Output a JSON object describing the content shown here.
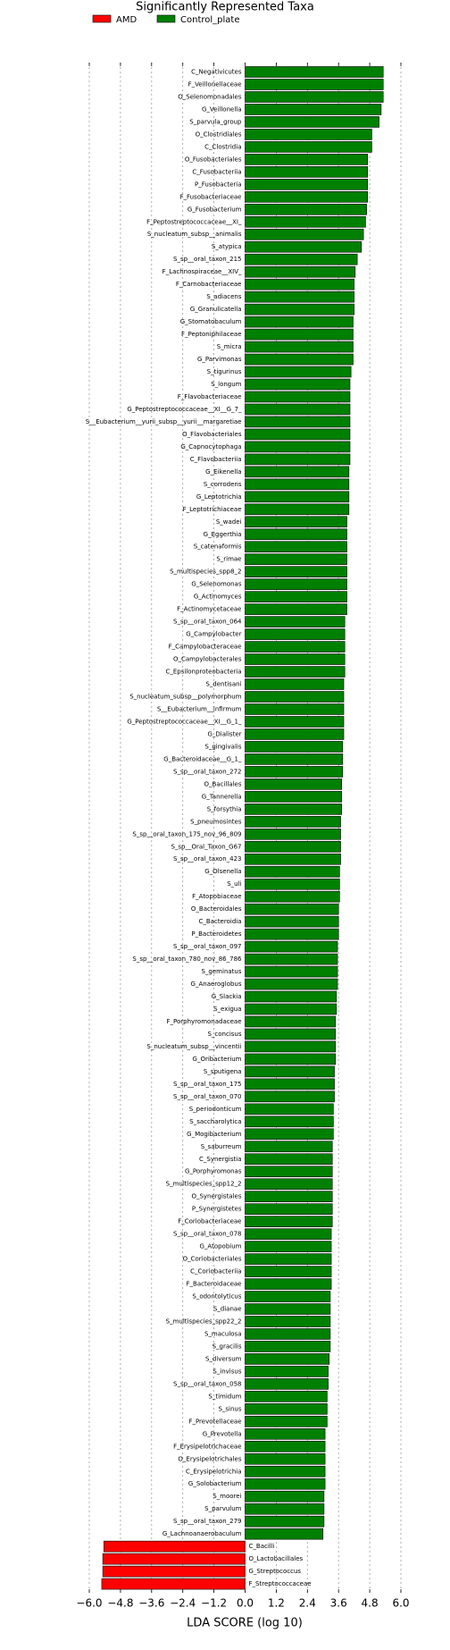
{
  "chart_data": {
    "type": "barh",
    "title": "Significantly Represented Taxa",
    "xlabel": "LDA SCORE (log 10)",
    "categories": [
      "C_Negativicutes",
      "F_Veillonellaceae",
      "O_Selenomonadales",
      "G_Veillonella",
      "S_parvula_group",
      "O_Clostridiales",
      "C_Clostridia",
      "O_Fusobacteriales",
      "C_Fusobacteriia",
      "P_Fusobacteria",
      "F_Fusobacteriaceae",
      "G_Fusobacterium",
      "F_Peptostreptococcaceae__XI_",
      "S_nucleatum_subsp__animalis",
      "S_atypica",
      "S_sp__oral_taxon_215",
      "F_Lachnospiraceae__XIV_",
      "F_Carnobacteriaceae",
      "S_adiacens",
      "G_Granulicatella",
      "G_Stomatobaculum",
      "F_Peptoniphilaceae",
      "S_micra",
      "G_Parvimonas",
      "S_tigurinus",
      "S_longum",
      "F_Flavobacteriaceae",
      "G_Peptostreptococcaceae__XI__G_7_",
      "S__Eubacterium__yurii_subsp__yurii__margaretiae",
      "O_Flavobacteriales",
      "G_Capnocytophaga",
      "C_Flavobacteriia",
      "G_Eikenella",
      "S_corrodens",
      "G_Leptotrichia",
      "F_Leptotrichiaceae",
      "S_wadei",
      "G_Eggerthia",
      "S_catenaformis",
      "S_rimae",
      "S_multispecies_spp8_2",
      "G_Selenomonas",
      "G_Actinomyces",
      "F_Actinomycetaceae",
      "S_sp__oral_taxon_064",
      "G_Campylobacter",
      "F_Campylobacteraceae",
      "O_Campylobacterales",
      "C_Epsilonproteobacteria",
      "S_dentisani",
      "S_nucleatum_subsp__polymorphum",
      "S__Eubacterium__infirmum",
      "G_Peptostreptococcaceae__XI__G_1_",
      "G_Dialister",
      "S_gingivalis",
      "G_Bacteroidaceae__G_1_",
      "S_sp__oral_taxon_272",
      "O_Bacillales",
      "G_Tannerella",
      "S_forsythia",
      "S_pneumosintes",
      "S_sp__oral_taxon_175_nov_96_809",
      "S_sp__Oral_Taxon_G67",
      "S_sp__oral_taxon_423",
      "G_Olsenella",
      "S_uli",
      "F_Atopobiaceae",
      "O_Bacteroidales",
      "C_Bacteroidia",
      "P_Bacteroidetes",
      "S_sp__oral_taxon_097",
      "S_sp__oral_taxon_780_nov_86_786",
      "S_geminatus",
      "G_Anaeroglobus",
      "G_Slackia",
      "S_exigua",
      "F_Porphyromonadaceae",
      "S_concisus",
      "S_nucleatum_subsp__vincentii",
      "G_Oribacterium",
      "S_sputigena",
      "S_sp__oral_taxon_175",
      "S_sp__oral_taxon_070",
      "S_periodonticum",
      "S_saccharolytica",
      "G_Mogibacterium",
      "S_saburreum",
      "C_Synergistia",
      "G_Porphyromonas",
      "S_multispecies_spp12_2",
      "O_Synergistales",
      "P_Synergistetes",
      "F_Coriobacteriaceae",
      "S_sp__oral_taxon_078",
      "G_Atopobium",
      "O_Coriobacteriales",
      "C_Coriobacteriia",
      "F_Bacteroidaceae",
      "S_odontolyticus",
      "S_dianae",
      "S_multispecies_spp22_2",
      "S_maculosa",
      "S_gracilis",
      "S_diversum",
      "S_invisus",
      "S_sp__oral_taxon_058",
      "S_timidum",
      "S_sinus",
      "F_Prevotellaceae",
      "G_Prevotella",
      "F_Erysipelotrichaceae",
      "O_Erysipelotrichales",
      "C_Erysipelotrichia",
      "G_Solobacterium",
      "S_moorei",
      "S_parvulum",
      "S_sp__oral_taxon_279",
      "G_Lachnoanaerobaculum",
      "C_Bacilli",
      "O_Lactobacillales",
      "G_Streptococcus",
      "F_Streptococcaceae"
    ],
    "series": [
      {
        "name": "AMD",
        "color": "#ff0000",
        "values": [
          null,
          null,
          null,
          null,
          null,
          null,
          null,
          null,
          null,
          null,
          null,
          null,
          null,
          null,
          null,
          null,
          null,
          null,
          null,
          null,
          null,
          null,
          null,
          null,
          null,
          null,
          null,
          null,
          null,
          null,
          null,
          null,
          null,
          null,
          null,
          null,
          null,
          null,
          null,
          null,
          null,
          null,
          null,
          null,
          null,
          null,
          null,
          null,
          null,
          null,
          null,
          null,
          null,
          null,
          null,
          null,
          null,
          null,
          null,
          null,
          null,
          null,
          null,
          null,
          null,
          null,
          null,
          null,
          null,
          null,
          null,
          null,
          null,
          null,
          null,
          null,
          null,
          null,
          null,
          null,
          null,
          null,
          null,
          null,
          null,
          null,
          null,
          null,
          null,
          null,
          null,
          null,
          null,
          null,
          null,
          null,
          null,
          null,
          null,
          null,
          null,
          null,
          null,
          null,
          null,
          null,
          null,
          null,
          null,
          null,
          null,
          null,
          null,
          null,
          null,
          null,
          null,
          null,
          -5.44,
          -5.48,
          -5.48,
          -5.52
        ]
      },
      {
        "name": "Control_plate",
        "color": "#008000",
        "values": [
          5.32,
          5.32,
          5.32,
          5.24,
          5.16,
          4.88,
          4.88,
          4.72,
          4.72,
          4.72,
          4.72,
          4.68,
          4.64,
          4.56,
          4.48,
          4.32,
          4.24,
          4.2,
          4.2,
          4.2,
          4.16,
          4.16,
          4.16,
          4.16,
          4.08,
          4.04,
          4.04,
          4.04,
          4.04,
          4.04,
          4.04,
          4.04,
          4.0,
          4.0,
          4.0,
          4.0,
          3.92,
          3.92,
          3.92,
          3.92,
          3.92,
          3.92,
          3.92,
          3.92,
          3.84,
          3.84,
          3.84,
          3.84,
          3.84,
          3.8,
          3.8,
          3.8,
          3.8,
          3.8,
          3.76,
          3.76,
          3.76,
          3.72,
          3.72,
          3.72,
          3.68,
          3.68,
          3.68,
          3.68,
          3.64,
          3.64,
          3.64,
          3.6,
          3.6,
          3.6,
          3.56,
          3.56,
          3.56,
          3.56,
          3.52,
          3.52,
          3.48,
          3.48,
          3.48,
          3.48,
          3.44,
          3.44,
          3.44,
          3.4,
          3.4,
          3.4,
          3.36,
          3.36,
          3.36,
          3.36,
          3.36,
          3.36,
          3.36,
          3.32,
          3.32,
          3.32,
          3.32,
          3.32,
          3.28,
          3.28,
          3.28,
          3.28,
          3.28,
          3.24,
          3.2,
          3.2,
          3.16,
          3.16,
          3.16,
          3.08,
          3.08,
          3.08,
          3.08,
          3.08,
          3.04,
          3.04,
          3.04,
          3.0,
          null,
          null,
          null,
          null
        ]
      }
    ],
    "xlim": [
      -6.0,
      6.0
    ],
    "xticks": [
      {
        "value": -6.0,
        "label": "−6.0"
      },
      {
        "value": -4.8,
        "label": "−4.8"
      },
      {
        "value": -3.6,
        "label": "−3.6"
      },
      {
        "value": -2.4,
        "label": "−2.4"
      },
      {
        "value": -1.2,
        "label": "−1.2"
      },
      {
        "value": 0,
        "label": "0.0"
      },
      {
        "value": 1.2,
        "label": "1.2"
      },
      {
        "value": 2.4,
        "label": "2.4"
      },
      {
        "value": 3.6,
        "label": "3.6"
      },
      {
        "value": 4.8,
        "label": "4.8"
      },
      {
        "value": 6.0,
        "label": "6.0"
      }
    ],
    "grid": true
  }
}
